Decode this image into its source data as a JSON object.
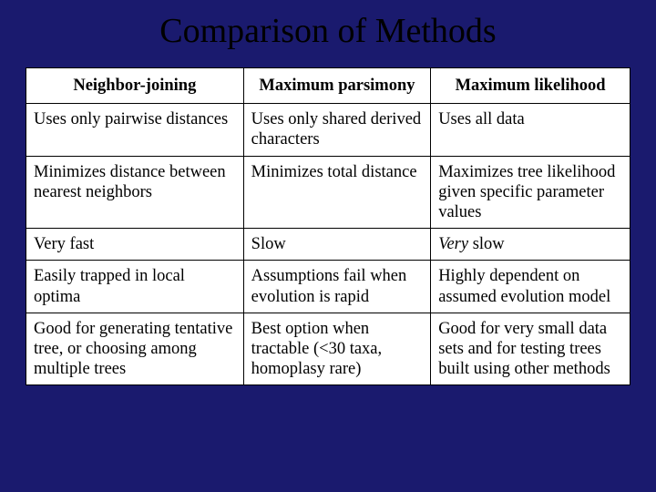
{
  "slide": {
    "title": "Comparison of Methods",
    "background_color": "#1a1a6e",
    "title_color": "#000000",
    "title_fontsize": 38
  },
  "table": {
    "type": "table",
    "border_color": "#000000",
    "cell_background": "#ffffff",
    "text_color": "#000000",
    "body_fontsize": 18.5,
    "col_widths_pct": [
      36,
      31,
      33
    ],
    "columns": [
      "Neighbor-joining",
      "Maximum parsimony",
      "Maximum likelihood"
    ],
    "rows": [
      [
        "Uses only pairwise distances",
        "Uses only shared derived characters",
        "Uses all data"
      ],
      [
        "Minimizes distance between nearest neighbors",
        "Minimizes total distance",
        "Maximizes tree likelihood given specific parameter values"
      ],
      [
        "Very fast",
        "Slow",
        {
          "prefix_italic": "Very",
          "rest": " slow"
        }
      ],
      [
        "Easily trapped in local optima",
        "Assumptions fail when evolution is rapid",
        "Highly dependent on assumed evolution model"
      ],
      [
        "Good for generating tentative tree, or choosing among multiple trees",
        "Best option when tractable (<30 taxa, homoplasy rare)",
        "Good for very small data sets and for testing trees built using other methods"
      ]
    ]
  }
}
